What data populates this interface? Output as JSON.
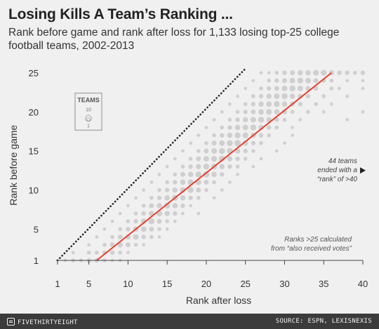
{
  "title": "Losing Kills A Team’s Ranking ...",
  "subtitle": "Rank before game and rank after loss for 1,133 losing top-25 college football teams, 2002-2013",
  "footer": {
    "brand": "FIVETHIRTYEIGHT",
    "source": "SOURCE: ESPN, LEXISNEXIS"
  },
  "colors": {
    "background": "#f0f0f0",
    "bubble": "#c9c9c9",
    "trend": "#e63e2f",
    "diagonal": "#222222",
    "footer": "#3b3b3b"
  },
  "chart_data": {
    "type": "scatter",
    "title": "Losing Kills A Team’s Ranking ...",
    "xlabel": "Rank after loss",
    "ylabel": "Rank before game",
    "xlim": [
      1,
      40
    ],
    "ylim": [
      1,
      25
    ],
    "xticks": [
      1,
      5,
      10,
      15,
      20,
      25,
      30,
      35,
      40
    ],
    "yticks": [
      1,
      5,
      10,
      15,
      20,
      25
    ],
    "grid": false,
    "bubble_size_legend": {
      "title": "TEAMS",
      "values": [
        10,
        1
      ]
    },
    "reference_line": {
      "style": "dotted",
      "from": [
        1,
        1
      ],
      "to": [
        25,
        25
      ]
    },
    "trend_line": {
      "from": [
        6,
        1
      ],
      "to": [
        36,
        25
      ]
    },
    "annotations": {
      "offchart": [
        "44 teams",
        "ended with a",
        "“rank” of >40"
      ],
      "also_votes": [
        "Ranks >25 calculated",
        "from “also received votes”"
      ]
    },
    "points_note": "Approximate bubble cloud: team counts estimated by bubble size",
    "points": [
      {
        "x": 2,
        "y": 1,
        "n": 1
      },
      {
        "x": 3,
        "y": 1,
        "n": 2
      },
      {
        "x": 4,
        "y": 1,
        "n": 2
      },
      {
        "x": 5,
        "y": 1,
        "n": 3
      },
      {
        "x": 6,
        "y": 1,
        "n": 3
      },
      {
        "x": 7,
        "y": 1,
        "n": 2
      },
      {
        "x": 8,
        "y": 1,
        "n": 1
      },
      {
        "x": 9,
        "y": 1,
        "n": 1
      },
      {
        "x": 3,
        "y": 2,
        "n": 1
      },
      {
        "x": 5,
        "y": 2,
        "n": 2
      },
      {
        "x": 6,
        "y": 2,
        "n": 2
      },
      {
        "x": 7,
        "y": 2,
        "n": 3
      },
      {
        "x": 8,
        "y": 2,
        "n": 3
      },
      {
        "x": 9,
        "y": 2,
        "n": 2
      },
      {
        "x": 10,
        "y": 2,
        "n": 1
      },
      {
        "x": 5,
        "y": 3,
        "n": 1
      },
      {
        "x": 7,
        "y": 3,
        "n": 2
      },
      {
        "x": 8,
        "y": 3,
        "n": 4
      },
      {
        "x": 9,
        "y": 3,
        "n": 5
      },
      {
        "x": 10,
        "y": 3,
        "n": 4
      },
      {
        "x": 11,
        "y": 3,
        "n": 2
      },
      {
        "x": 12,
        "y": 3,
        "n": 1
      },
      {
        "x": 6,
        "y": 4,
        "n": 1
      },
      {
        "x": 8,
        "y": 4,
        "n": 2
      },
      {
        "x": 9,
        "y": 4,
        "n": 4
      },
      {
        "x": 10,
        "y": 4,
        "n": 5
      },
      {
        "x": 11,
        "y": 4,
        "n": 6
      },
      {
        "x": 12,
        "y": 4,
        "n": 3
      },
      {
        "x": 13,
        "y": 4,
        "n": 2
      },
      {
        "x": 14,
        "y": 4,
        "n": 1
      },
      {
        "x": 7,
        "y": 5,
        "n": 1
      },
      {
        "x": 9,
        "y": 5,
        "n": 2
      },
      {
        "x": 10,
        "y": 5,
        "n": 3
      },
      {
        "x": 11,
        "y": 5,
        "n": 5
      },
      {
        "x": 12,
        "y": 5,
        "n": 6
      },
      {
        "x": 13,
        "y": 5,
        "n": 4
      },
      {
        "x": 14,
        "y": 5,
        "n": 2
      },
      {
        "x": 15,
        "y": 5,
        "n": 1
      },
      {
        "x": 8,
        "y": 6,
        "n": 1
      },
      {
        "x": 10,
        "y": 6,
        "n": 2
      },
      {
        "x": 11,
        "y": 6,
        "n": 3
      },
      {
        "x": 12,
        "y": 6,
        "n": 6
      },
      {
        "x": 13,
        "y": 6,
        "n": 7
      },
      {
        "x": 14,
        "y": 6,
        "n": 4
      },
      {
        "x": 15,
        "y": 6,
        "n": 2
      },
      {
        "x": 16,
        "y": 6,
        "n": 1
      },
      {
        "x": 9,
        "y": 7,
        "n": 1
      },
      {
        "x": 11,
        "y": 7,
        "n": 2
      },
      {
        "x": 12,
        "y": 7,
        "n": 3
      },
      {
        "x": 13,
        "y": 7,
        "n": 5
      },
      {
        "x": 14,
        "y": 7,
        "n": 7
      },
      {
        "x": 15,
        "y": 7,
        "n": 5
      },
      {
        "x": 16,
        "y": 7,
        "n": 3
      },
      {
        "x": 17,
        "y": 7,
        "n": 1
      },
      {
        "x": 19,
        "y": 7,
        "n": 1
      },
      {
        "x": 10,
        "y": 8,
        "n": 1
      },
      {
        "x": 12,
        "y": 8,
        "n": 2
      },
      {
        "x": 13,
        "y": 8,
        "n": 4
      },
      {
        "x": 14,
        "y": 8,
        "n": 5
      },
      {
        "x": 15,
        "y": 8,
        "n": 7
      },
      {
        "x": 16,
        "y": 8,
        "n": 5
      },
      {
        "x": 17,
        "y": 8,
        "n": 3
      },
      {
        "x": 18,
        "y": 8,
        "n": 1
      },
      {
        "x": 11,
        "y": 9,
        "n": 1
      },
      {
        "x": 13,
        "y": 9,
        "n": 2
      },
      {
        "x": 14,
        "y": 9,
        "n": 3
      },
      {
        "x": 15,
        "y": 9,
        "n": 5
      },
      {
        "x": 16,
        "y": 9,
        "n": 7
      },
      {
        "x": 17,
        "y": 9,
        "n": 5
      },
      {
        "x": 18,
        "y": 9,
        "n": 3
      },
      {
        "x": 19,
        "y": 9,
        "n": 2
      },
      {
        "x": 21,
        "y": 9,
        "n": 1
      },
      {
        "x": 12,
        "y": 10,
        "n": 1
      },
      {
        "x": 14,
        "y": 10,
        "n": 2
      },
      {
        "x": 15,
        "y": 10,
        "n": 3
      },
      {
        "x": 16,
        "y": 10,
        "n": 5
      },
      {
        "x": 17,
        "y": 10,
        "n": 6
      },
      {
        "x": 18,
        "y": 10,
        "n": 7
      },
      {
        "x": 19,
        "y": 10,
        "n": 4
      },
      {
        "x": 20,
        "y": 10,
        "n": 2
      },
      {
        "x": 22,
        "y": 10,
        "n": 1
      },
      {
        "x": 13,
        "y": 11,
        "n": 1
      },
      {
        "x": 15,
        "y": 11,
        "n": 2
      },
      {
        "x": 16,
        "y": 11,
        "n": 3
      },
      {
        "x": 17,
        "y": 11,
        "n": 5
      },
      {
        "x": 18,
        "y": 11,
        "n": 7
      },
      {
        "x": 19,
        "y": 11,
        "n": 6
      },
      {
        "x": 20,
        "y": 11,
        "n": 4
      },
      {
        "x": 21,
        "y": 11,
        "n": 2
      },
      {
        "x": 23,
        "y": 11,
        "n": 1
      },
      {
        "x": 14,
        "y": 12,
        "n": 1
      },
      {
        "x": 16,
        "y": 12,
        "n": 2
      },
      {
        "x": 17,
        "y": 12,
        "n": 4
      },
      {
        "x": 18,
        "y": 12,
        "n": 5
      },
      {
        "x": 19,
        "y": 12,
        "n": 7
      },
      {
        "x": 20,
        "y": 12,
        "n": 8
      },
      {
        "x": 21,
        "y": 12,
        "n": 5
      },
      {
        "x": 22,
        "y": 12,
        "n": 3
      },
      {
        "x": 24,
        "y": 12,
        "n": 1
      },
      {
        "x": 15,
        "y": 13,
        "n": 1
      },
      {
        "x": 17,
        "y": 13,
        "n": 2
      },
      {
        "x": 18,
        "y": 13,
        "n": 3
      },
      {
        "x": 19,
        "y": 13,
        "n": 5
      },
      {
        "x": 20,
        "y": 13,
        "n": 7
      },
      {
        "x": 21,
        "y": 13,
        "n": 7
      },
      {
        "x": 22,
        "y": 13,
        "n": 5
      },
      {
        "x": 23,
        "y": 13,
        "n": 3
      },
      {
        "x": 24,
        "y": 13,
        "n": 2
      },
      {
        "x": 26,
        "y": 13,
        "n": 1
      },
      {
        "x": 16,
        "y": 14,
        "n": 1
      },
      {
        "x": 18,
        "y": 14,
        "n": 2
      },
      {
        "x": 19,
        "y": 14,
        "n": 4
      },
      {
        "x": 20,
        "y": 14,
        "n": 6
      },
      {
        "x": 21,
        "y": 14,
        "n": 7
      },
      {
        "x": 22,
        "y": 14,
        "n": 8
      },
      {
        "x": 23,
        "y": 14,
        "n": 5
      },
      {
        "x": 24,
        "y": 14,
        "n": 3
      },
      {
        "x": 25,
        "y": 14,
        "n": 2
      },
      {
        "x": 27,
        "y": 14,
        "n": 1
      },
      {
        "x": 17,
        "y": 15,
        "n": 1
      },
      {
        "x": 19,
        "y": 15,
        "n": 2
      },
      {
        "x": 20,
        "y": 15,
        "n": 4
      },
      {
        "x": 21,
        "y": 15,
        "n": 6
      },
      {
        "x": 22,
        "y": 15,
        "n": 8
      },
      {
        "x": 23,
        "y": 15,
        "n": 7
      },
      {
        "x": 24,
        "y": 15,
        "n": 5
      },
      {
        "x": 25,
        "y": 15,
        "n": 3
      },
      {
        "x": 26,
        "y": 15,
        "n": 2
      },
      {
        "x": 29,
        "y": 15,
        "n": 1
      },
      {
        "x": 18,
        "y": 16,
        "n": 1
      },
      {
        "x": 20,
        "y": 16,
        "n": 2
      },
      {
        "x": 21,
        "y": 16,
        "n": 4
      },
      {
        "x": 22,
        "y": 16,
        "n": 6
      },
      {
        "x": 23,
        "y": 16,
        "n": 7
      },
      {
        "x": 24,
        "y": 16,
        "n": 8
      },
      {
        "x": 25,
        "y": 16,
        "n": 5
      },
      {
        "x": 26,
        "y": 16,
        "n": 3
      },
      {
        "x": 27,
        "y": 16,
        "n": 2
      },
      {
        "x": 30,
        "y": 16,
        "n": 1
      },
      {
        "x": 19,
        "y": 17,
        "n": 1
      },
      {
        "x": 21,
        "y": 17,
        "n": 2
      },
      {
        "x": 22,
        "y": 17,
        "n": 3
      },
      {
        "x": 23,
        "y": 17,
        "n": 5
      },
      {
        "x": 24,
        "y": 17,
        "n": 7
      },
      {
        "x": 25,
        "y": 17,
        "n": 7
      },
      {
        "x": 26,
        "y": 17,
        "n": 5
      },
      {
        "x": 27,
        "y": 17,
        "n": 3
      },
      {
        "x": 28,
        "y": 17,
        "n": 2
      },
      {
        "x": 31,
        "y": 17,
        "n": 1
      },
      {
        "x": 20,
        "y": 18,
        "n": 1
      },
      {
        "x": 22,
        "y": 18,
        "n": 2
      },
      {
        "x": 23,
        "y": 18,
        "n": 3
      },
      {
        "x": 24,
        "y": 18,
        "n": 5
      },
      {
        "x": 25,
        "y": 18,
        "n": 6
      },
      {
        "x": 26,
        "y": 18,
        "n": 7
      },
      {
        "x": 27,
        "y": 18,
        "n": 5
      },
      {
        "x": 28,
        "y": 18,
        "n": 3
      },
      {
        "x": 29,
        "y": 18,
        "n": 2
      },
      {
        "x": 31,
        "y": 18,
        "n": 1
      },
      {
        "x": 21,
        "y": 19,
        "n": 1
      },
      {
        "x": 23,
        "y": 19,
        "n": 2
      },
      {
        "x": 24,
        "y": 19,
        "n": 3
      },
      {
        "x": 25,
        "y": 19,
        "n": 5
      },
      {
        "x": 26,
        "y": 19,
        "n": 6
      },
      {
        "x": 27,
        "y": 19,
        "n": 7
      },
      {
        "x": 28,
        "y": 19,
        "n": 5
      },
      {
        "x": 29,
        "y": 19,
        "n": 3
      },
      {
        "x": 30,
        "y": 19,
        "n": 2
      },
      {
        "x": 32,
        "y": 19,
        "n": 1
      },
      {
        "x": 38,
        "y": 19,
        "n": 1
      },
      {
        "x": 22,
        "y": 20,
        "n": 1
      },
      {
        "x": 24,
        "y": 20,
        "n": 2
      },
      {
        "x": 25,
        "y": 20,
        "n": 3
      },
      {
        "x": 26,
        "y": 20,
        "n": 4
      },
      {
        "x": 27,
        "y": 20,
        "n": 6
      },
      {
        "x": 28,
        "y": 20,
        "n": 7
      },
      {
        "x": 29,
        "y": 20,
        "n": 5
      },
      {
        "x": 30,
        "y": 20,
        "n": 4
      },
      {
        "x": 31,
        "y": 20,
        "n": 2
      },
      {
        "x": 33,
        "y": 20,
        "n": 2
      },
      {
        "x": 35,
        "y": 20,
        "n": 1
      },
      {
        "x": 40,
        "y": 20,
        "n": 1
      },
      {
        "x": 23,
        "y": 21,
        "n": 1
      },
      {
        "x": 25,
        "y": 21,
        "n": 2
      },
      {
        "x": 26,
        "y": 21,
        "n": 3
      },
      {
        "x": 27,
        "y": 21,
        "n": 5
      },
      {
        "x": 28,
        "y": 21,
        "n": 6
      },
      {
        "x": 29,
        "y": 21,
        "n": 7
      },
      {
        "x": 30,
        "y": 21,
        "n": 5
      },
      {
        "x": 31,
        "y": 21,
        "n": 4
      },
      {
        "x": 32,
        "y": 21,
        "n": 3
      },
      {
        "x": 34,
        "y": 21,
        "n": 2
      },
      {
        "x": 36,
        "y": 21,
        "n": 1
      },
      {
        "x": 24,
        "y": 22,
        "n": 1
      },
      {
        "x": 26,
        "y": 22,
        "n": 2
      },
      {
        "x": 27,
        "y": 22,
        "n": 3
      },
      {
        "x": 28,
        "y": 22,
        "n": 5
      },
      {
        "x": 29,
        "y": 22,
        "n": 6
      },
      {
        "x": 30,
        "y": 22,
        "n": 7
      },
      {
        "x": 31,
        "y": 22,
        "n": 5
      },
      {
        "x": 32,
        "y": 22,
        "n": 4
      },
      {
        "x": 33,
        "y": 22,
        "n": 3
      },
      {
        "x": 35,
        "y": 22,
        "n": 2
      },
      {
        "x": 38,
        "y": 22,
        "n": 1
      },
      {
        "x": 25,
        "y": 23,
        "n": 1
      },
      {
        "x": 27,
        "y": 23,
        "n": 2
      },
      {
        "x": 28,
        "y": 23,
        "n": 3
      },
      {
        "x": 29,
        "y": 23,
        "n": 4
      },
      {
        "x": 30,
        "y": 23,
        "n": 6
      },
      {
        "x": 31,
        "y": 23,
        "n": 7
      },
      {
        "x": 32,
        "y": 23,
        "n": 6
      },
      {
        "x": 33,
        "y": 23,
        "n": 4
      },
      {
        "x": 34,
        "y": 23,
        "n": 3
      },
      {
        "x": 36,
        "y": 23,
        "n": 2
      },
      {
        "x": 37,
        "y": 23,
        "n": 1
      },
      {
        "x": 40,
        "y": 23,
        "n": 1
      },
      {
        "x": 26,
        "y": 24,
        "n": 1
      },
      {
        "x": 28,
        "y": 24,
        "n": 2
      },
      {
        "x": 29,
        "y": 24,
        "n": 3
      },
      {
        "x": 30,
        "y": 24,
        "n": 4
      },
      {
        "x": 31,
        "y": 24,
        "n": 6
      },
      {
        "x": 32,
        "y": 24,
        "n": 7
      },
      {
        "x": 33,
        "y": 24,
        "n": 6
      },
      {
        "x": 34,
        "y": 24,
        "n": 4
      },
      {
        "x": 35,
        "y": 24,
        "n": 3
      },
      {
        "x": 36,
        "y": 24,
        "n": 2
      },
      {
        "x": 38,
        "y": 24,
        "n": 1
      },
      {
        "x": 40,
        "y": 24,
        "n": 1
      },
      {
        "x": 27,
        "y": 25,
        "n": 1
      },
      {
        "x": 28,
        "y": 25,
        "n": 1
      },
      {
        "x": 29,
        "y": 25,
        "n": 2
      },
      {
        "x": 30,
        "y": 25,
        "n": 3
      },
      {
        "x": 31,
        "y": 25,
        "n": 4
      },
      {
        "x": 32,
        "y": 25,
        "n": 5
      },
      {
        "x": 33,
        "y": 25,
        "n": 5
      },
      {
        "x": 34,
        "y": 25,
        "n": 6
      },
      {
        "x": 35,
        "y": 25,
        "n": 7
      },
      {
        "x": 36,
        "y": 25,
        "n": 5
      },
      {
        "x": 37,
        "y": 25,
        "n": 3
      },
      {
        "x": 38,
        "y": 25,
        "n": 3
      },
      {
        "x": 39,
        "y": 25,
        "n": 2
      },
      {
        "x": 40,
        "y": 25,
        "n": 3
      }
    ]
  }
}
